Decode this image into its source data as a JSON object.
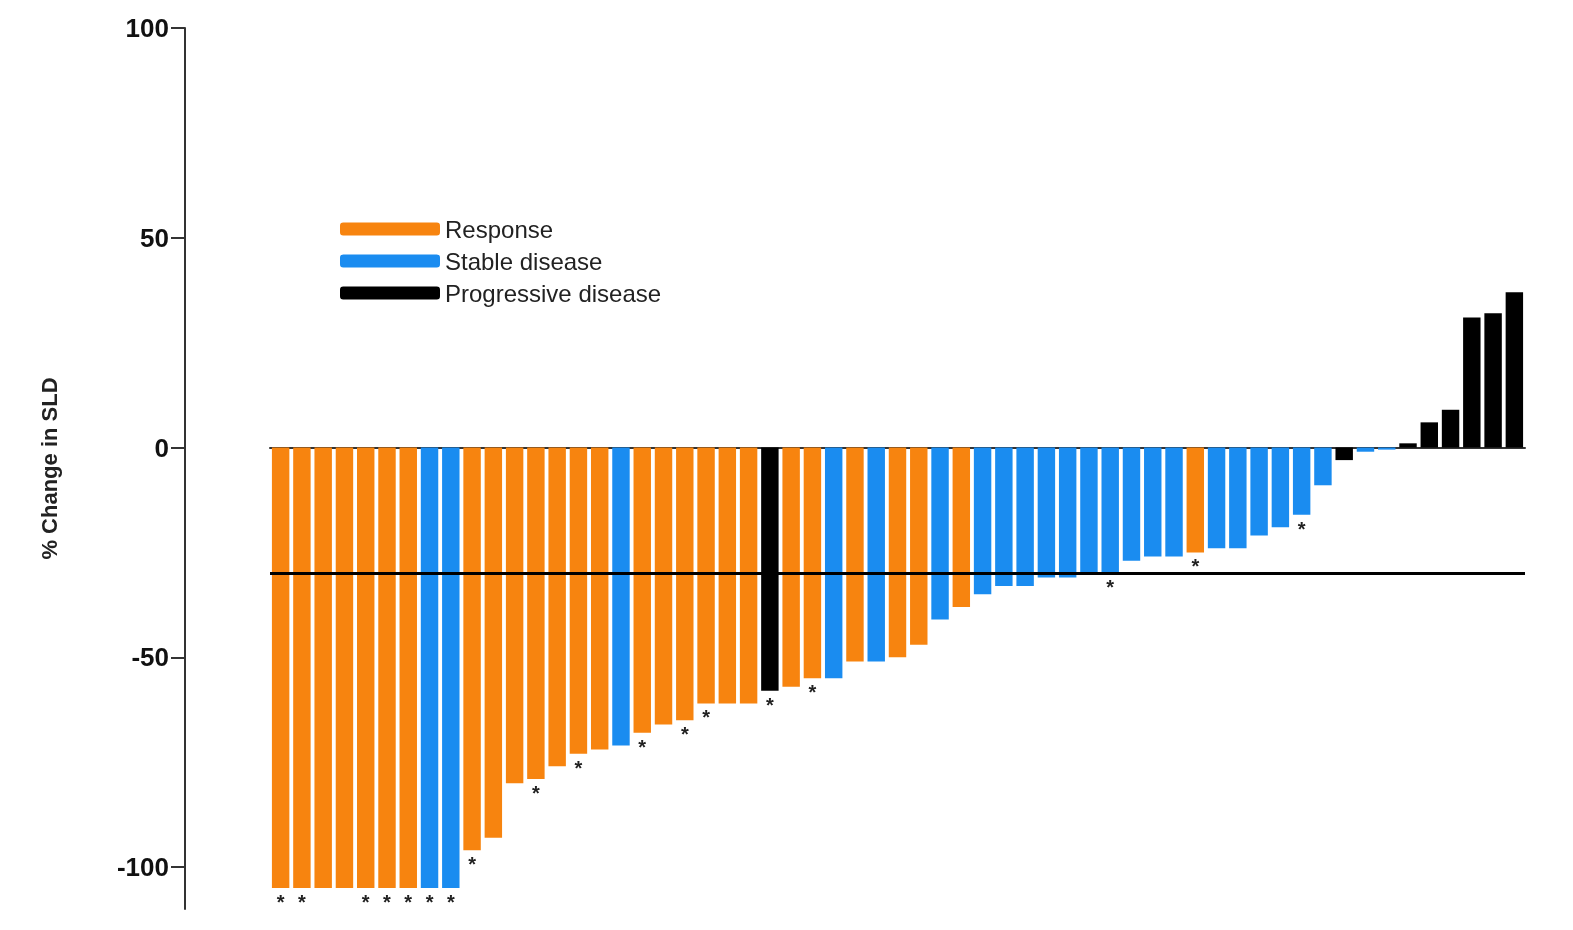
{
  "chart_data": {
    "type": "bar",
    "ylabel": "% Change in SLD",
    "categories": [
      null,
      null,
      null,
      null,
      null,
      null,
      null,
      null,
      null,
      null,
      null,
      null,
      null,
      null,
      null,
      null,
      null,
      null,
      null,
      null,
      null,
      null,
      null,
      null,
      null,
      null,
      null,
      null,
      null,
      null,
      null,
      null,
      null,
      null,
      null,
      null,
      null,
      null,
      null,
      null,
      null,
      null,
      null,
      null,
      null,
      null,
      null,
      null,
      null,
      null,
      null,
      null,
      null,
      null,
      null,
      null,
      null,
      null,
      null
    ],
    "series": [
      {
        "name": "Response",
        "color": "#f7840f",
        "values": [
          -105,
          -105,
          -105,
          -105,
          -105,
          -105,
          -105,
          null,
          null,
          -96,
          -93,
          -80,
          -79,
          -76,
          -73,
          -72,
          null,
          -68,
          -66,
          -65,
          -61,
          -61,
          -61,
          null,
          -57,
          -55,
          null,
          -51,
          null,
          -50,
          -47,
          null,
          -38,
          null,
          null,
          null,
          null,
          null,
          null,
          null,
          null,
          null,
          null,
          -25,
          null,
          null,
          null,
          null,
          null,
          null,
          null,
          null,
          null,
          null,
          null,
          null,
          null,
          null,
          null
        ],
        "value_labels": [
          "*",
          "*",
          null,
          null,
          "*",
          "*",
          "*",
          null,
          null,
          "*",
          null,
          null,
          "*",
          null,
          "*",
          null,
          null,
          "*",
          null,
          "*",
          "*",
          null,
          null,
          null,
          null,
          "*",
          null,
          null,
          null,
          null,
          null,
          null,
          null,
          null,
          null,
          null,
          null,
          null,
          null,
          null,
          null,
          null,
          null,
          "*",
          null,
          null,
          null,
          null,
          null,
          null,
          null,
          null,
          null,
          null,
          null,
          null,
          null,
          null,
          null
        ]
      },
      {
        "name": "Stable disease",
        "color": "#1a8cf0",
        "values": [
          null,
          null,
          null,
          null,
          null,
          null,
          null,
          -105,
          -105,
          null,
          null,
          null,
          null,
          null,
          null,
          null,
          -71,
          null,
          null,
          null,
          null,
          null,
          null,
          null,
          null,
          null,
          -55,
          null,
          -51,
          null,
          null,
          -41,
          null,
          -35,
          -33,
          -33,
          -31,
          -31,
          -30,
          -30,
          -27,
          -26,
          -26,
          null,
          -24,
          -24,
          -21,
          -19,
          -16,
          -9,
          null,
          -1,
          -0.5,
          null,
          null,
          null,
          null,
          null,
          null
        ],
        "value_labels": [
          null,
          null,
          null,
          null,
          null,
          null,
          null,
          "*",
          "*",
          null,
          null,
          null,
          null,
          null,
          null,
          null,
          null,
          null,
          null,
          null,
          null,
          null,
          null,
          null,
          null,
          null,
          null,
          null,
          null,
          null,
          null,
          null,
          null,
          null,
          null,
          null,
          null,
          null,
          null,
          "*",
          null,
          null,
          null,
          null,
          null,
          null,
          null,
          null,
          "*",
          null,
          null,
          null,
          null,
          null,
          null,
          null,
          null,
          null,
          null
        ]
      },
      {
        "name": "Progressive disease",
        "color": "#000000",
        "values": [
          null,
          null,
          null,
          null,
          null,
          null,
          null,
          null,
          null,
          null,
          null,
          null,
          null,
          null,
          null,
          null,
          null,
          null,
          null,
          null,
          null,
          null,
          null,
          -58,
          null,
          null,
          null,
          null,
          null,
          null,
          null,
          null,
          null,
          null,
          null,
          null,
          null,
          null,
          null,
          null,
          null,
          null,
          null,
          null,
          null,
          null,
          null,
          null,
          null,
          null,
          -3,
          null,
          null,
          1,
          6,
          9,
          31,
          32,
          37
        ],
        "value_labels": [
          null,
          null,
          null,
          null,
          null,
          null,
          null,
          null,
          null,
          null,
          null,
          null,
          null,
          null,
          null,
          null,
          null,
          null,
          null,
          null,
          null,
          null,
          null,
          "*",
          null,
          null,
          null,
          null,
          null,
          null,
          null,
          null,
          null,
          null,
          null,
          null,
          null,
          null,
          null,
          null,
          null,
          null,
          null,
          null,
          null,
          null,
          null,
          null,
          null,
          null,
          null,
          null,
          null,
          null,
          null,
          null,
          null,
          null,
          null
        ]
      }
    ],
    "ylim": [
      -110,
      100
    ],
    "yticks": [
      -100,
      -50,
      0,
      50,
      100
    ],
    "ref_lines": [
      {
        "axis": "y",
        "value": -30,
        "color": "#000000",
        "line_style": "solid"
      }
    ],
    "legend": "top left"
  }
}
